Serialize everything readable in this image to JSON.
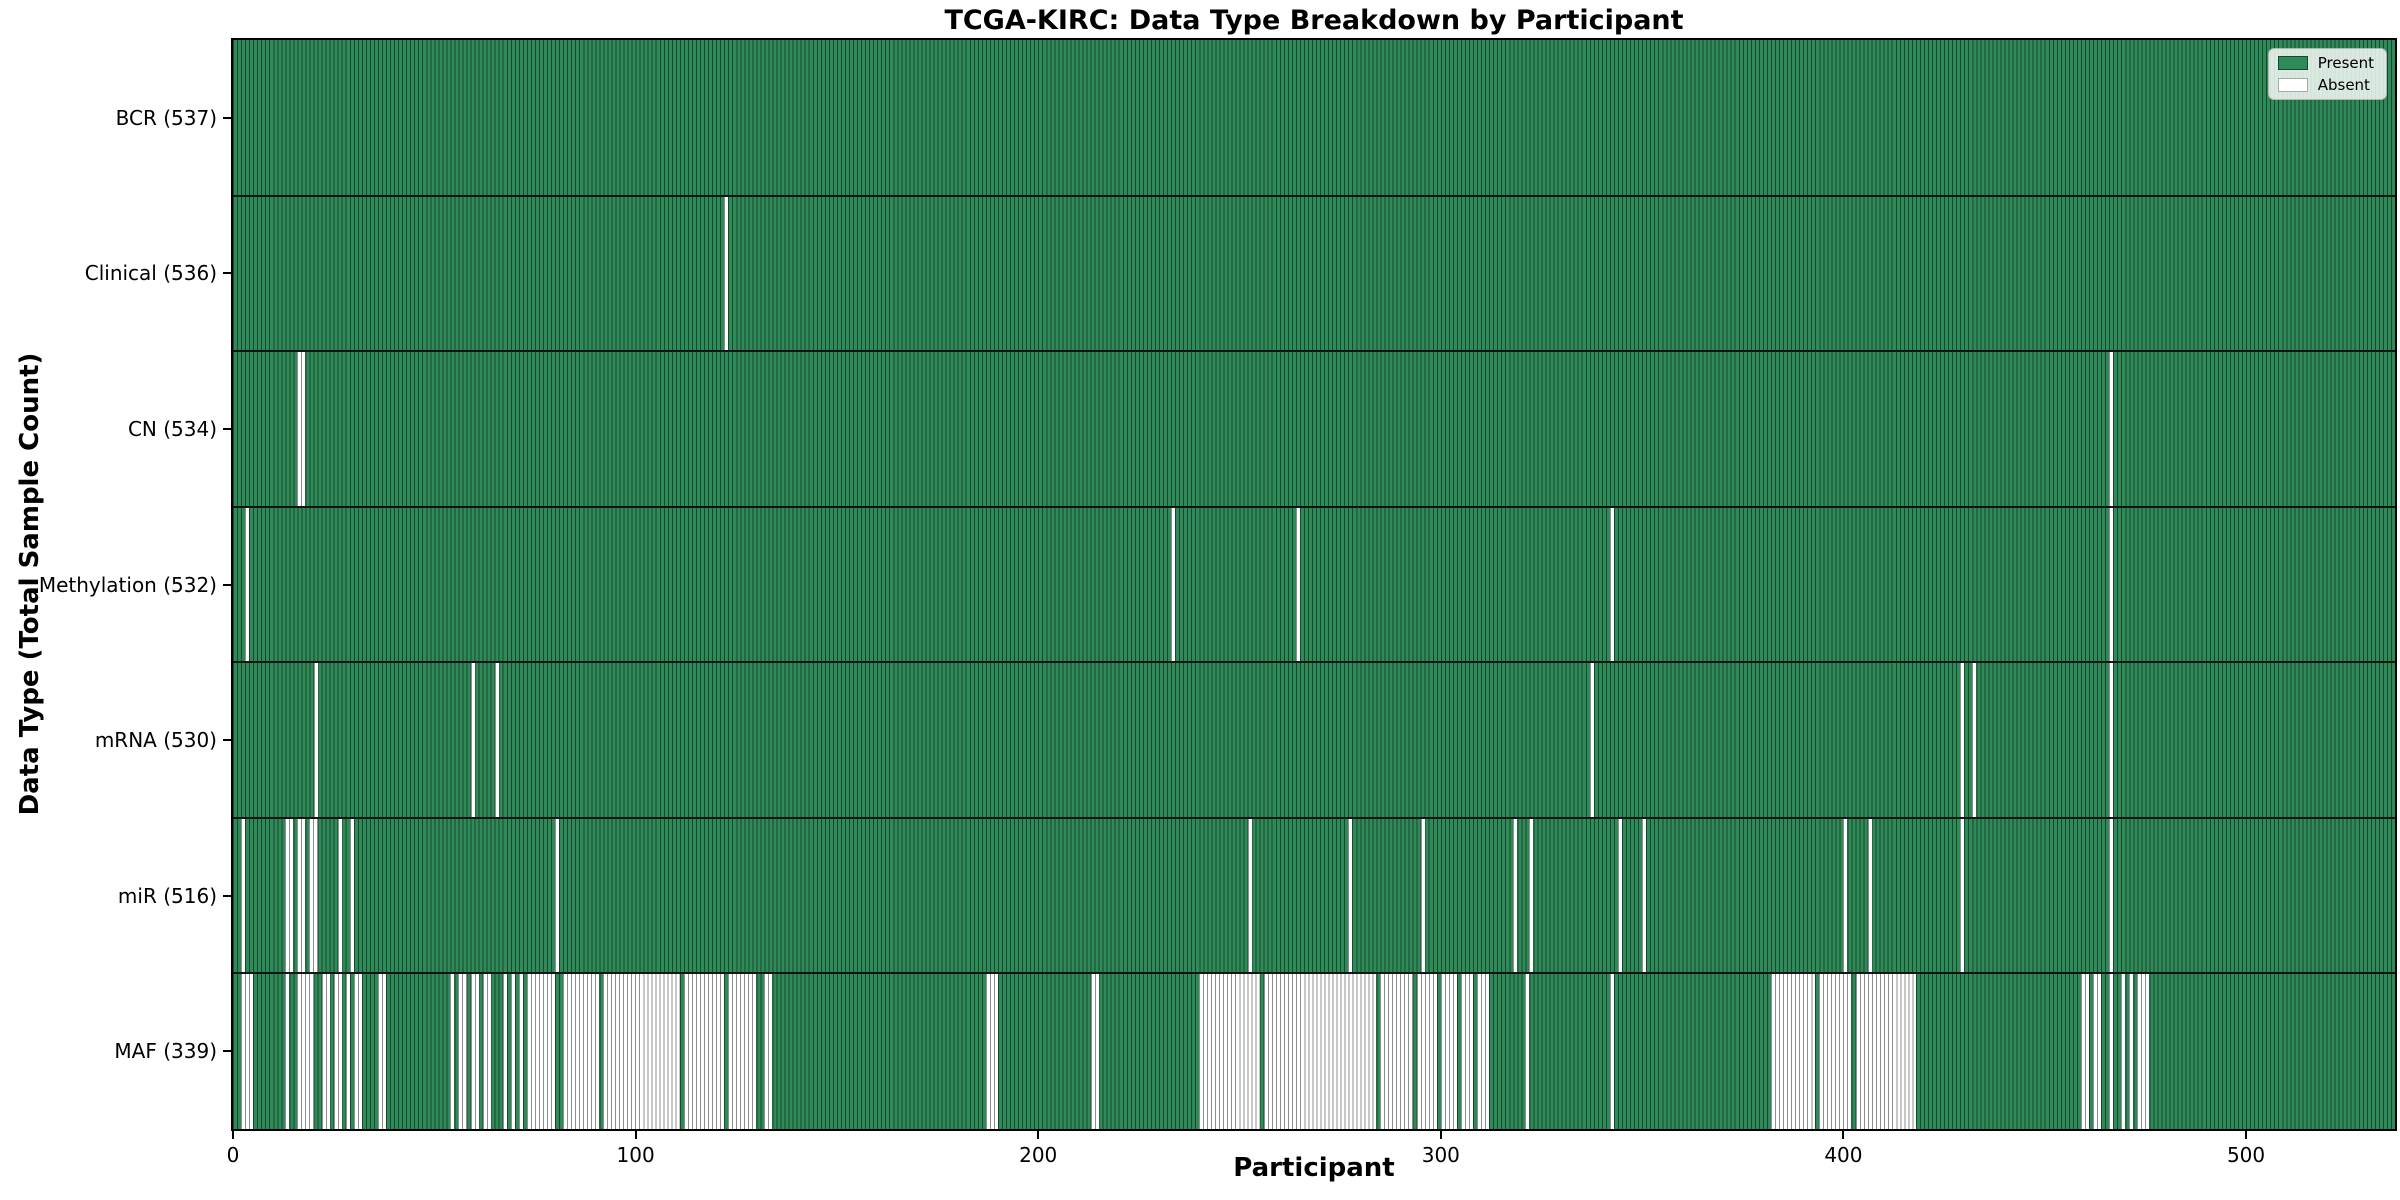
{
  "chart_data": {
    "type": "heatmap",
    "title": "TCGA-KIRC: Data Type Breakdown by Participant",
    "xlabel": "Participant",
    "ylabel": "Data Type (Total Sample Count)",
    "x_ticks": [
      0,
      100,
      200,
      300,
      400,
      500
    ],
    "xlim": [
      0,
      537
    ],
    "n_participants": 537,
    "grid": false,
    "legend_position": "upper right",
    "legend": {
      "present_label": "Present",
      "absent_label": "Absent"
    },
    "colors": {
      "present": "#2e8b57",
      "present_edge": "#1a4731",
      "absent": "#ffffff",
      "absent_edge": "#8f8f8f",
      "row_divider": "#141414",
      "plot_border": "#000000"
    },
    "rows": [
      {
        "label": "BCR (537)",
        "data_type": "BCR",
        "total_samples": 537,
        "absent_ranges": []
      },
      {
        "label": "Clinical (536)",
        "data_type": "Clinical",
        "total_samples": 536,
        "absent_ranges": [
          [
            122,
            122
          ]
        ]
      },
      {
        "label": "CN (534)",
        "data_type": "CN",
        "total_samples": 534,
        "absent_ranges": [
          [
            16,
            17
          ],
          [
            466,
            466
          ]
        ]
      },
      {
        "label": "Methylation (532)",
        "data_type": "Methylation",
        "total_samples": 532,
        "absent_ranges": [
          [
            3,
            3
          ],
          [
            233,
            233
          ],
          [
            264,
            264
          ],
          [
            342,
            342
          ],
          [
            466,
            466
          ]
        ]
      },
      {
        "label": "mRNA (530)",
        "data_type": "mRNA",
        "total_samples": 530,
        "absent_ranges": [
          [
            20,
            20
          ],
          [
            59,
            59
          ],
          [
            65,
            65
          ],
          [
            337,
            337
          ],
          [
            429,
            429
          ],
          [
            432,
            432
          ],
          [
            466,
            466
          ]
        ]
      },
      {
        "label": "miR (516)",
        "data_type": "miR",
        "total_samples": 516,
        "absent_ranges": [
          [
            2,
            2
          ],
          [
            13,
            14
          ],
          [
            16,
            17
          ],
          [
            19,
            20
          ],
          [
            26,
            26
          ],
          [
            29,
            29
          ],
          [
            80,
            80
          ],
          [
            252,
            252
          ],
          [
            277,
            277
          ],
          [
            295,
            295
          ],
          [
            318,
            318
          ],
          [
            322,
            322
          ],
          [
            344,
            344
          ],
          [
            350,
            350
          ],
          [
            400,
            400
          ],
          [
            406,
            406
          ],
          [
            429,
            429
          ],
          [
            466,
            466
          ]
        ]
      },
      {
        "label": "MAF (339)",
        "data_type": "MAF",
        "total_samples": 339,
        "absent_ranges": [
          [
            2,
            4
          ],
          [
            13,
            13
          ],
          [
            16,
            19
          ],
          [
            22,
            23
          ],
          [
            25,
            26
          ],
          [
            28,
            28
          ],
          [
            30,
            31
          ],
          [
            36,
            37
          ],
          [
            54,
            54
          ],
          [
            56,
            57
          ],
          [
            59,
            60
          ],
          [
            62,
            63
          ],
          [
            67,
            67
          ],
          [
            69,
            69
          ],
          [
            71,
            71
          ],
          [
            73,
            79
          ],
          [
            82,
            90
          ],
          [
            92,
            110
          ],
          [
            112,
            121
          ],
          [
            123,
            129
          ],
          [
            132,
            133
          ],
          [
            187,
            189
          ],
          [
            213,
            214
          ],
          [
            240,
            254
          ],
          [
            256,
            283
          ],
          [
            285,
            292
          ],
          [
            294,
            298
          ],
          [
            300,
            303
          ],
          [
            305,
            307
          ],
          [
            309,
            311
          ],
          [
            321,
            321
          ],
          [
            342,
            342
          ],
          [
            382,
            392
          ],
          [
            394,
            401
          ],
          [
            403,
            417
          ],
          [
            459,
            460
          ],
          [
            462,
            463
          ],
          [
            466,
            466
          ],
          [
            469,
            469
          ],
          [
            471,
            471
          ],
          [
            473,
            475
          ]
        ]
      }
    ]
  }
}
